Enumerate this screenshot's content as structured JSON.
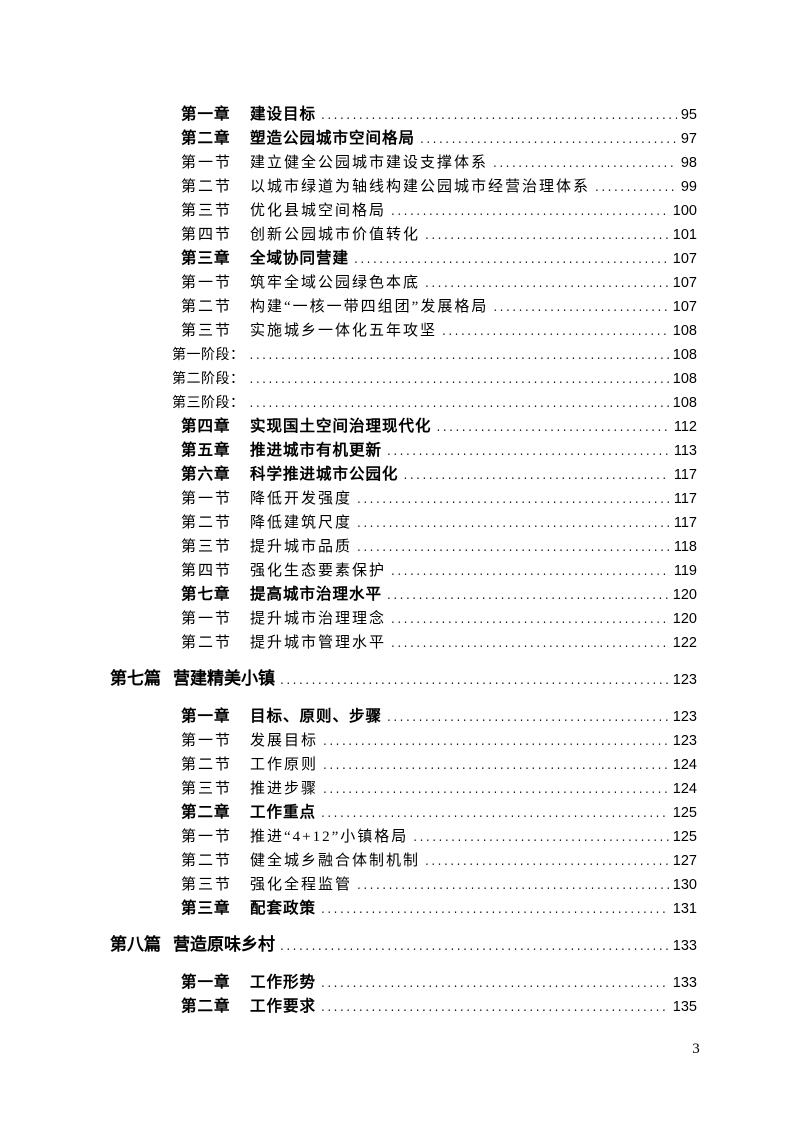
{
  "document": {
    "footer_page_number": "3"
  },
  "toc": {
    "entries": [
      {
        "level": "chapter",
        "label": "第一章",
        "title": "建设目标",
        "page": "95"
      },
      {
        "level": "chapter",
        "label": "第二章",
        "title": "塑造公园城市空间格局",
        "page": "97"
      },
      {
        "level": "section",
        "label": "第一节",
        "title": "建立健全公园城市建设支撑体系",
        "page": "98"
      },
      {
        "level": "section",
        "label": "第二节",
        "title": "以城市绿道为轴线构建公园城市经营治理体系",
        "page": "99"
      },
      {
        "level": "section",
        "label": "第三节",
        "title": "优化县城空间格局",
        "page": "100"
      },
      {
        "level": "section",
        "label": "第四节",
        "title": "创新公园城市价值转化",
        "page": "101"
      },
      {
        "level": "chapter",
        "label": "第三章",
        "title": "全域协同营建",
        "page": "107"
      },
      {
        "level": "section",
        "label": "第一节",
        "title": "筑牢全域公园绿色本底",
        "page": "107"
      },
      {
        "level": "section",
        "label": "第二节",
        "title": "构建“一核一带四组团”发展格局",
        "page": "107"
      },
      {
        "level": "section",
        "label": "第三节",
        "title": "实施城乡一体化五年攻坚",
        "page": "108"
      },
      {
        "level": "stage",
        "label": "第一阶段：",
        "title": "",
        "page": "108"
      },
      {
        "level": "stage",
        "label": "第二阶段：",
        "title": "",
        "page": "108"
      },
      {
        "level": "stage",
        "label": "第三阶段：",
        "title": "",
        "page": "108"
      },
      {
        "level": "chapter",
        "label": "第四章",
        "title": "实现国土空间治理现代化",
        "page": "112"
      },
      {
        "level": "chapter",
        "label": "第五章",
        "title": "推进城市有机更新",
        "page": "113"
      },
      {
        "level": "chapter",
        "label": "第六章",
        "title": "科学推进城市公园化",
        "page": "117"
      },
      {
        "level": "section",
        "label": "第一节",
        "title": "降低开发强度",
        "page": "117"
      },
      {
        "level": "section",
        "label": "第二节",
        "title": "降低建筑尺度",
        "page": "117"
      },
      {
        "level": "section",
        "label": "第三节",
        "title": "提升城市品质",
        "page": "118"
      },
      {
        "level": "section",
        "label": "第四节",
        "title": "强化生态要素保护",
        "page": "119"
      },
      {
        "level": "chapter",
        "label": "第七章",
        "title": "提高城市治理水平",
        "page": "120"
      },
      {
        "level": "section",
        "label": "第一节",
        "title": "提升城市治理理念",
        "page": "120"
      },
      {
        "level": "section",
        "label": "第二节",
        "title": "提升城市管理水平",
        "page": "122"
      },
      {
        "level": "pian",
        "label": "第七篇",
        "title": "营建精美小镇",
        "page": "123"
      },
      {
        "level": "chapter",
        "label": "第一章",
        "title": "目标、原则、步骤",
        "page": "123"
      },
      {
        "level": "section",
        "label": "第一节",
        "title": "发展目标",
        "page": "123"
      },
      {
        "level": "section",
        "label": "第二节",
        "title": "工作原则",
        "page": "124"
      },
      {
        "level": "section",
        "label": "第三节",
        "title": "推进步骤",
        "page": "124"
      },
      {
        "level": "chapter",
        "label": "第二章",
        "title": "工作重点",
        "page": "125"
      },
      {
        "level": "section",
        "label": "第一节",
        "title": "推进“4+12”小镇格局",
        "page": "125"
      },
      {
        "level": "section",
        "label": "第二节",
        "title": "健全城乡融合体制机制",
        "page": "127"
      },
      {
        "level": "section",
        "label": "第三节",
        "title": "强化全程监管",
        "page": "130"
      },
      {
        "level": "chapter",
        "label": "第三章",
        "title": "配套政策",
        "page": "131"
      },
      {
        "level": "pian",
        "label": "第八篇",
        "title": "营造原味乡村",
        "page": "133"
      },
      {
        "level": "chapter",
        "label": "第一章",
        "title": "工作形势",
        "page": "133"
      },
      {
        "level": "chapter",
        "label": "第二章",
        "title": "工作要求",
        "page": "135"
      }
    ]
  }
}
